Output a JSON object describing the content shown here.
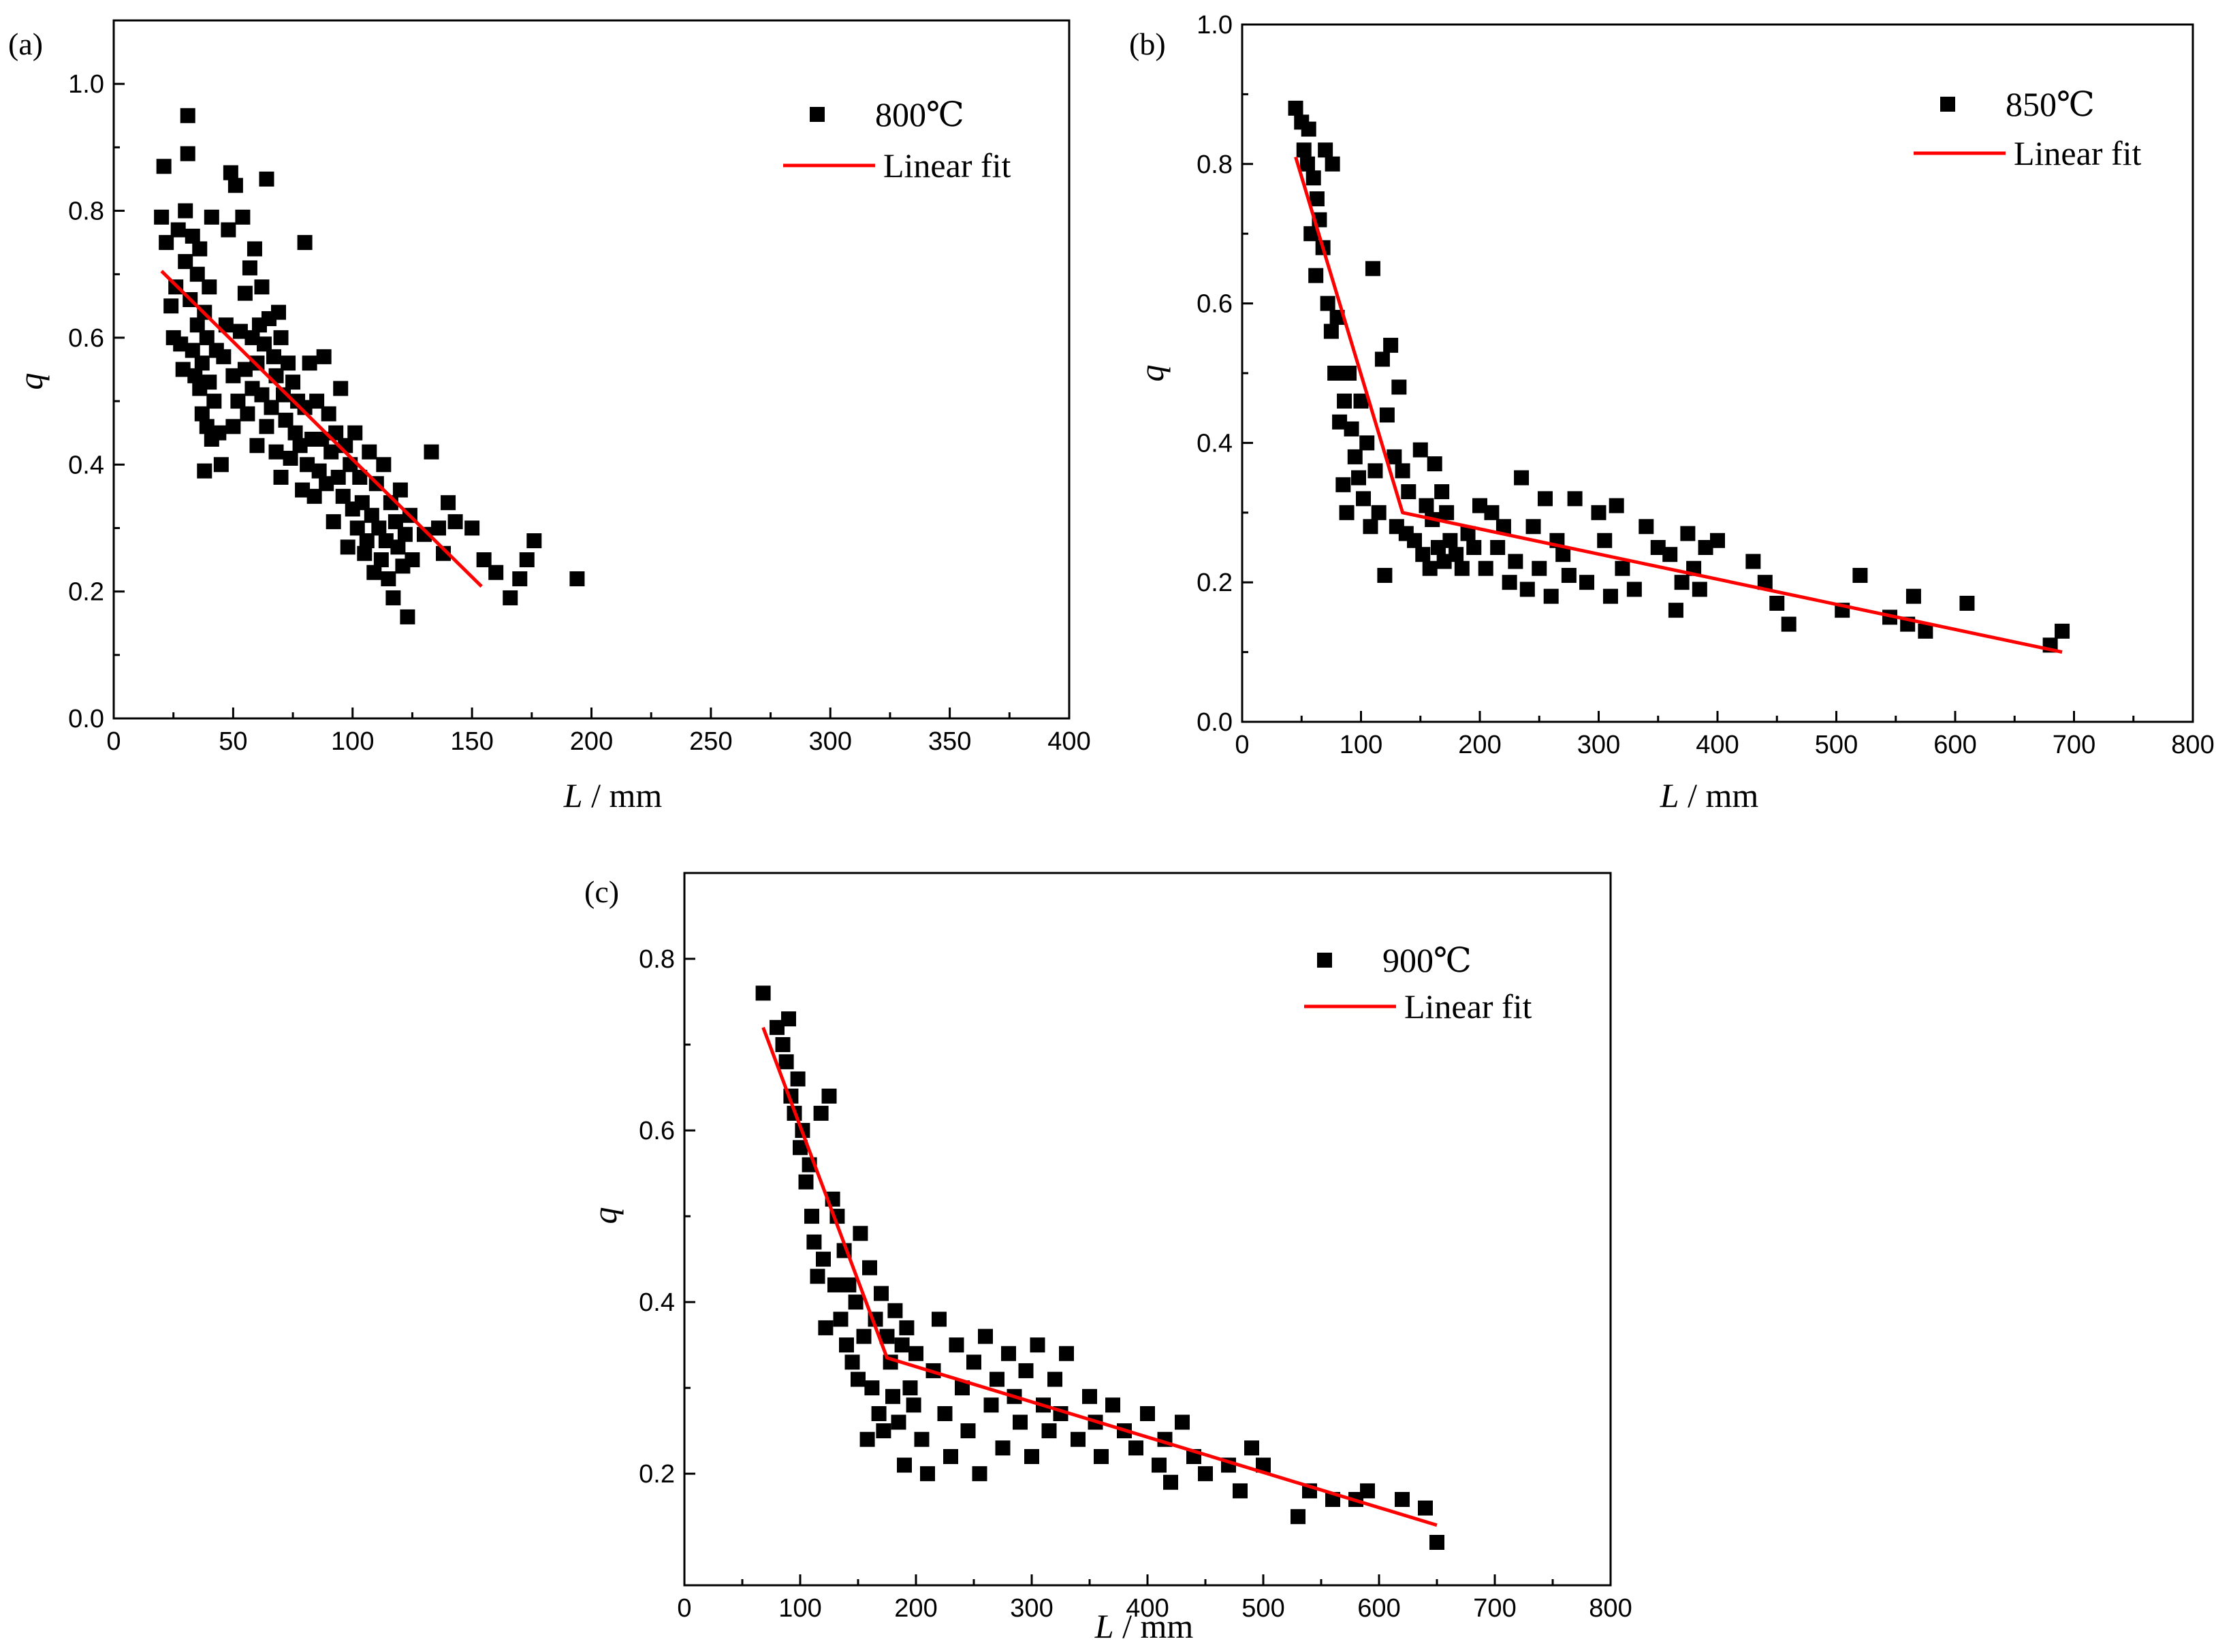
{
  "colors": {
    "points": "#000000",
    "fit": "#ff0000",
    "axis": "#000000"
  },
  "chart_data": [
    {
      "type": "scatter",
      "panel_label": "(a)",
      "xlabel_var": "L",
      "xlabel_unit": " / mm",
      "ylabel": "q",
      "xlim": [
        0,
        400
      ],
      "ylim": [
        0,
        1.1
      ],
      "xticks": [
        0,
        50,
        100,
        150,
        200,
        250,
        300,
        350,
        400
      ],
      "xtick_labels": [
        "0",
        "50",
        "100",
        "150",
        "200",
        "250",
        "300",
        "350",
        "400"
      ],
      "yticks": [
        0,
        0.2,
        0.4,
        0.6,
        0.8,
        1.0
      ],
      "ytick_labels": [
        "0.0",
        "0.2",
        "0.4",
        "0.6",
        "0.8",
        "1.0"
      ],
      "legend": {
        "position": "top-right",
        "series_name": "800℃",
        "fit_name": "Linear fit"
      },
      "fit": {
        "x": [
          20,
          154
        ],
        "y": [
          0.705,
          0.208
        ]
      },
      "series": [
        {
          "name": "800℃",
          "x": [
            20,
            21,
            22,
            24,
            25,
            26,
            27,
            28,
            29,
            30,
            30,
            31,
            31,
            32,
            33,
            33,
            34,
            35,
            35,
            36,
            36,
            37,
            37,
            38,
            38,
            39,
            39,
            40,
            40,
            41,
            41,
            42,
            43,
            44,
            45,
            46,
            47,
            48,
            49,
            50,
            50,
            51,
            52,
            53,
            54,
            55,
            55,
            56,
            57,
            58,
            58,
            59,
            60,
            60,
            61,
            62,
            62,
            63,
            64,
            64,
            65,
            66,
            67,
            68,
            68,
            69,
            70,
            70,
            71,
            72,
            73,
            74,
            75,
            76,
            77,
            78,
            79,
            80,
            80,
            81,
            82,
            83,
            84,
            85,
            86,
            87,
            88,
            89,
            90,
            91,
            92,
            93,
            94,
            95,
            96,
            97,
            98,
            99,
            100,
            101,
            102,
            103,
            104,
            105,
            106,
            107,
            108,
            109,
            110,
            111,
            112,
            113,
            114,
            115,
            116,
            117,
            118,
            119,
            120,
            121,
            122,
            123,
            124,
            125,
            130,
            133,
            136,
            138,
            140,
            143,
            150,
            155,
            160,
            166,
            170,
            173,
            176,
            194
          ],
          "y": [
            0.79,
            0.87,
            0.75,
            0.65,
            0.6,
            0.68,
            0.77,
            0.59,
            0.55,
            0.8,
            0.72,
            0.95,
            0.89,
            0.66,
            0.58,
            0.76,
            0.54,
            0.62,
            0.7,
            0.52,
            0.74,
            0.56,
            0.48,
            0.64,
            0.39,
            0.6,
            0.46,
            0.68,
            0.53,
            0.79,
            0.44,
            0.5,
            0.58,
            0.45,
            0.4,
            0.57,
            0.62,
            0.77,
            0.86,
            0.54,
            0.46,
            0.84,
            0.5,
            0.61,
            0.79,
            0.55,
            0.67,
            0.48,
            0.71,
            0.52,
            0.6,
            0.74,
            0.56,
            0.43,
            0.62,
            0.68,
            0.51,
            0.59,
            0.85,
            0.46,
            0.63,
            0.49,
            0.57,
            0.54,
            0.42,
            0.64,
            0.38,
            0.6,
            0.51,
            0.47,
            0.56,
            0.41,
            0.53,
            0.45,
            0.5,
            0.43,
            0.36,
            0.75,
            0.49,
            0.4,
            0.56,
            0.44,
            0.35,
            0.5,
            0.39,
            0.44,
            0.57,
            0.37,
            0.48,
            0.42,
            0.31,
            0.45,
            0.38,
            0.52,
            0.35,
            0.43,
            0.27,
            0.4,
            0.33,
            0.45,
            0.3,
            0.38,
            0.34,
            0.26,
            0.28,
            0.42,
            0.32,
            0.23,
            0.37,
            0.3,
            0.25,
            0.4,
            0.28,
            0.22,
            0.34,
            0.19,
            0.31,
            0.27,
            0.36,
            0.24,
            0.29,
            0.16,
            0.32,
            0.25,
            0.29,
            0.42,
            0.3,
            0.26,
            0.34,
            0.31,
            0.3,
            0.25,
            0.23,
            0.19,
            0.22,
            0.25,
            0.28,
            0.22
          ]
        }
      ]
    },
    {
      "type": "scatter",
      "panel_label": "(b)",
      "xlabel_var": "L",
      "xlabel_unit": " / mm",
      "ylabel": "q",
      "xlim": [
        0,
        800
      ],
      "ylim": [
        0,
        1.0
      ],
      "xticks": [
        0,
        100,
        200,
        300,
        400,
        500,
        600,
        700,
        800
      ],
      "xtick_labels": [
        "0",
        "100",
        "200",
        "300",
        "400",
        "500",
        "600",
        "700",
        "800"
      ],
      "yticks": [
        0,
        0.2,
        0.4,
        0.6,
        0.8,
        1.0
      ],
      "ytick_labels": [
        "0.0",
        "0.2",
        "0.4",
        "0.6",
        "0.8",
        "1.0"
      ],
      "legend": {
        "position": "top-right",
        "series_name": "850℃",
        "fit_name": "Linear fit"
      },
      "fit": {
        "x": [
          45,
          135,
          690
        ],
        "y": [
          0.81,
          0.3,
          0.1
        ]
      },
      "series": [
        {
          "name": "850℃",
          "x": [
            45,
            50,
            52,
            55,
            56,
            58,
            60,
            62,
            63,
            65,
            68,
            70,
            72,
            75,
            76,
            78,
            80,
            82,
            85,
            86,
            88,
            90,
            92,
            95,
            98,
            100,
            102,
            105,
            108,
            110,
            112,
            115,
            118,
            120,
            122,
            125,
            128,
            130,
            132,
            135,
            138,
            140,
            145,
            150,
            152,
            155,
            158,
            160,
            162,
            165,
            168,
            170,
            172,
            175,
            180,
            185,
            190,
            195,
            200,
            205,
            210,
            215,
            220,
            225,
            230,
            235,
            240,
            245,
            250,
            255,
            260,
            265,
            270,
            275,
            280,
            290,
            300,
            305,
            310,
            315,
            320,
            330,
            340,
            350,
            360,
            365,
            370,
            375,
            380,
            385,
            390,
            400,
            430,
            440,
            450,
            460,
            505,
            520,
            545,
            560,
            565,
            575,
            610,
            680,
            690
          ],
          "y": [
            0.88,
            0.86,
            0.82,
            0.8,
            0.85,
            0.7,
            0.78,
            0.64,
            0.75,
            0.72,
            0.68,
            0.82,
            0.6,
            0.56,
            0.8,
            0.5,
            0.58,
            0.43,
            0.34,
            0.46,
            0.3,
            0.5,
            0.42,
            0.38,
            0.35,
            0.46,
            0.32,
            0.4,
            0.28,
            0.65,
            0.36,
            0.3,
            0.52,
            0.21,
            0.44,
            0.54,
            0.38,
            0.28,
            0.48,
            0.36,
            0.27,
            0.33,
            0.26,
            0.39,
            0.24,
            0.31,
            0.22,
            0.29,
            0.37,
            0.25,
            0.33,
            0.23,
            0.3,
            0.26,
            0.24,
            0.22,
            0.27,
            0.25,
            0.31,
            0.22,
            0.3,
            0.25,
            0.28,
            0.2,
            0.23,
            0.35,
            0.19,
            0.28,
            0.22,
            0.32,
            0.18,
            0.26,
            0.24,
            0.21,
            0.32,
            0.2,
            0.3,
            0.26,
            0.18,
            0.31,
            0.22,
            0.19,
            0.28,
            0.25,
            0.24,
            0.16,
            0.2,
            0.27,
            0.22,
            0.19,
            0.25,
            0.26,
            0.23,
            0.2,
            0.17,
            0.14,
            0.16,
            0.21,
            0.15,
            0.14,
            0.18,
            0.13,
            0.17,
            0.11,
            0.13
          ]
        }
      ]
    },
    {
      "type": "scatter",
      "panel_label": "(c)",
      "xlabel_var": "L",
      "xlabel_unit": " / mm",
      "ylabel": "q",
      "xlim": [
        0,
        800
      ],
      "ylim": [
        0.07,
        0.9
      ],
      "xticks": [
        0,
        100,
        200,
        300,
        400,
        500,
        600,
        700,
        800
      ],
      "xtick_labels": [
        "0",
        "100",
        "200",
        "300",
        "400",
        "500",
        "600",
        "700",
        "800"
      ],
      "yticks": [
        0.2,
        0.4,
        0.6,
        0.8
      ],
      "ytick_labels": [
        "0.2",
        "0.4",
        "0.6",
        "0.8"
      ],
      "legend": {
        "position": "top-right",
        "series_name": "900℃",
        "fit_name": "Linear fit"
      },
      "fit": {
        "x": [
          68,
          175,
          650
        ],
        "y": [
          0.72,
          0.335,
          0.14
        ]
      },
      "series": [
        {
          "name": "900℃",
          "x": [
            68,
            80,
            85,
            88,
            90,
            92,
            95,
            98,
            100,
            102,
            105,
            108,
            110,
            112,
            115,
            118,
            120,
            122,
            125,
            128,
            130,
            132,
            135,
            138,
            140,
            142,
            145,
            148,
            150,
            152,
            155,
            158,
            160,
            162,
            165,
            168,
            170,
            172,
            175,
            178,
            180,
            182,
            185,
            188,
            190,
            192,
            195,
            198,
            200,
            205,
            210,
            215,
            220,
            225,
            230,
            235,
            240,
            245,
            250,
            255,
            260,
            265,
            270,
            275,
            280,
            285,
            290,
            295,
            300,
            305,
            310,
            315,
            320,
            325,
            330,
            340,
            350,
            355,
            360,
            370,
            380,
            390,
            400,
            410,
            415,
            420,
            430,
            440,
            450,
            470,
            480,
            490,
            500,
            530,
            540,
            560,
            580,
            590,
            620,
            640,
            650
          ],
          "y": [
            0.76,
            0.72,
            0.7,
            0.68,
            0.73,
            0.64,
            0.62,
            0.66,
            0.58,
            0.6,
            0.54,
            0.56,
            0.5,
            0.47,
            0.43,
            0.62,
            0.45,
            0.37,
            0.64,
            0.52,
            0.42,
            0.5,
            0.38,
            0.46,
            0.35,
            0.42,
            0.33,
            0.4,
            0.31,
            0.48,
            0.36,
            0.24,
            0.44,
            0.3,
            0.38,
            0.27,
            0.41,
            0.25,
            0.36,
            0.33,
            0.29,
            0.39,
            0.26,
            0.35,
            0.21,
            0.37,
            0.3,
            0.28,
            0.34,
            0.24,
            0.2,
            0.32,
            0.38,
            0.27,
            0.22,
            0.35,
            0.3,
            0.25,
            0.33,
            0.2,
            0.36,
            0.28,
            0.31,
            0.23,
            0.34,
            0.29,
            0.26,
            0.32,
            0.22,
            0.35,
            0.28,
            0.25,
            0.31,
            0.27,
            0.34,
            0.24,
            0.29,
            0.26,
            0.22,
            0.28,
            0.25,
            0.23,
            0.27,
            0.21,
            0.24,
            0.19,
            0.26,
            0.22,
            0.2,
            0.21,
            0.18,
            0.23,
            0.21,
            0.15,
            0.18,
            0.17,
            0.17,
            0.18,
            0.17,
            0.16,
            0.12
          ]
        }
      ]
    }
  ]
}
